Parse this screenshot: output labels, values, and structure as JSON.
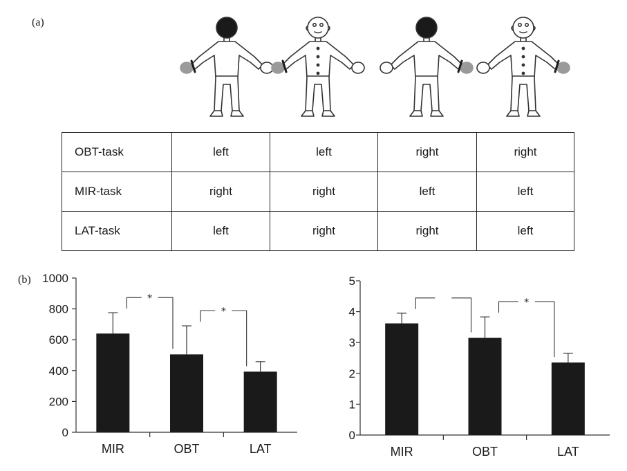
{
  "panels": {
    "a": "(a)",
    "b": "(b)"
  },
  "table": {
    "rows": [
      {
        "label": "OBT-task",
        "cells": [
          "left",
          "left",
          "right",
          "right"
        ]
      },
      {
        "label": "MIR-task",
        "cells": [
          "right",
          "right",
          "left",
          "left"
        ]
      },
      {
        "label": "LAT-task",
        "cells": [
          "left",
          "right",
          "right",
          "left"
        ]
      }
    ]
  },
  "figures": [
    {
      "view": "back",
      "marked_hand": "left"
    },
    {
      "view": "front",
      "marked_hand": "left"
    },
    {
      "view": "back",
      "marked_hand": "right"
    },
    {
      "view": "front",
      "marked_hand": "right"
    }
  ],
  "colors": {
    "bar": "#1a1a1a",
    "marked_hand": "#9a9a9a",
    "axis": "#333333"
  },
  "chart_data": [
    {
      "type": "bar",
      "categories": [
        "MIR",
        "OBT",
        "LAT"
      ],
      "values": [
        640,
        505,
        393
      ],
      "errors": [
        135,
        185,
        65
      ],
      "yticks": [
        "0",
        "200",
        "400",
        "600",
        "800",
        "1000"
      ],
      "ylim": [
        0,
        1000
      ],
      "significance": [
        {
          "from": 0,
          "to": 1,
          "label": "*"
        },
        {
          "from": 1,
          "to": 2,
          "label": "*"
        }
      ]
    },
    {
      "type": "bar",
      "categories": [
        "MIR",
        "OBT",
        "LAT"
      ],
      "values": [
        3.62,
        3.15,
        2.35
      ],
      "errors": [
        0.33,
        0.68,
        0.3
      ],
      "yticks": [
        "0",
        "1",
        "2",
        "3",
        "4",
        "5"
      ],
      "ylim": [
        0,
        5
      ],
      "significance": [
        {
          "from": 0,
          "to": 1,
          "label": ""
        },
        {
          "from": 1,
          "to": 2,
          "label": "*"
        }
      ]
    }
  ]
}
